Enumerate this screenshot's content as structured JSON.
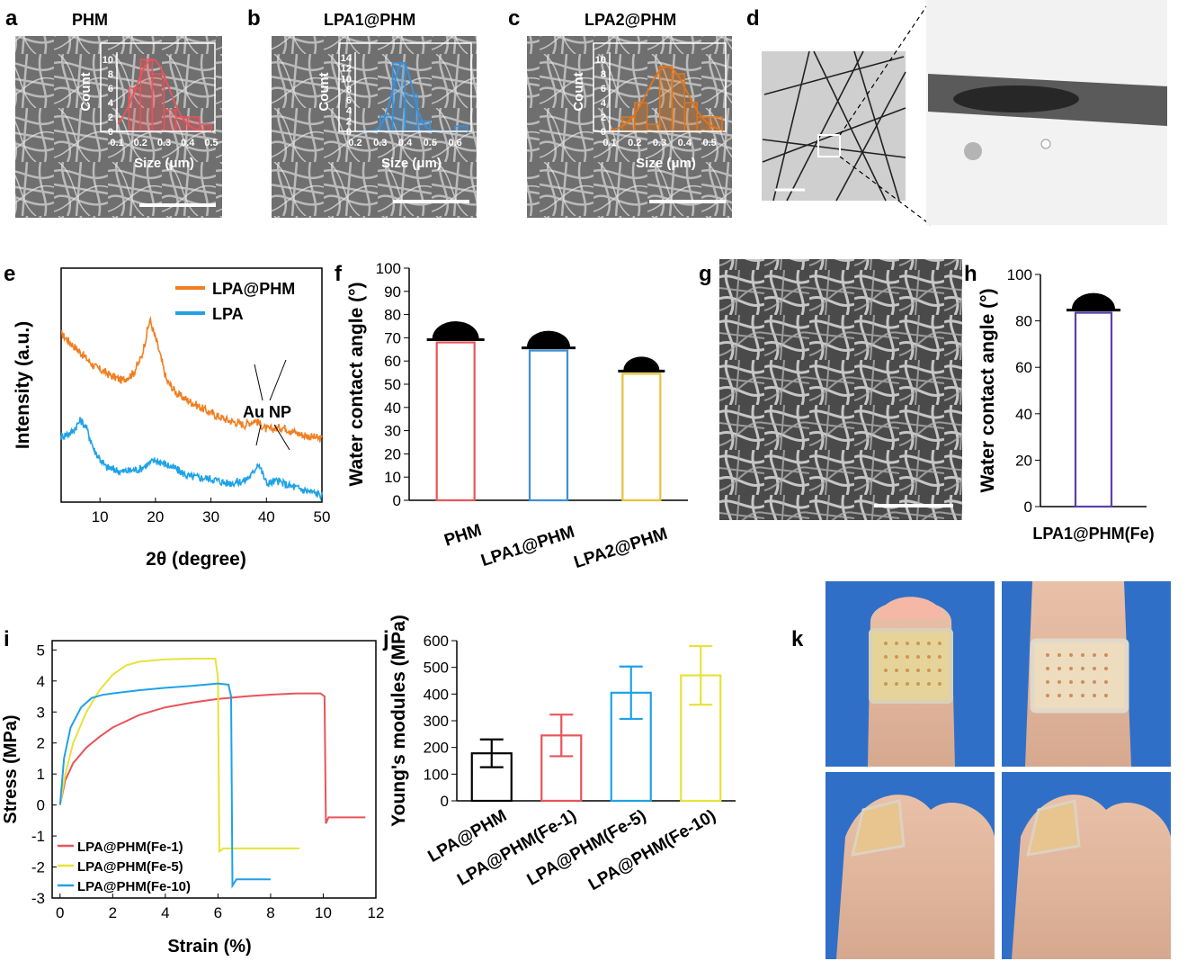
{
  "figure": {
    "colors": {
      "red": "#e8545a",
      "blue": "#3d8fd6",
      "orange": "#f07f22",
      "cyan": "#1fa2e6",
      "yellow": "#e8e23a",
      "purple": "#5b3fb0",
      "dark_orange": "#e0751a",
      "black": "#000000"
    },
    "panels": {
      "a": {
        "letter": "a",
        "title": "PHM"
      },
      "b": {
        "letter": "b",
        "title": "LPA1@PHM"
      },
      "c": {
        "letter": "c",
        "title": "LPA2@PHM"
      },
      "d": {
        "letter": "d"
      },
      "e": {
        "letter": "e"
      },
      "f": {
        "letter": "f"
      },
      "g": {
        "letter": "g"
      },
      "h": {
        "letter": "h"
      },
      "i": {
        "letter": "i"
      },
      "j": {
        "letter": "j"
      },
      "k": {
        "letter": "k"
      }
    }
  },
  "chart_data": [
    {
      "id": "a-inset",
      "type": "bar",
      "title": "PHM",
      "xlabel": "Size (μm)",
      "ylabel": "Count",
      "xlim": [
        0.1,
        0.5
      ],
      "ylim": [
        0,
        11
      ],
      "xticks": [
        "0.1",
        "0.2",
        "0.3",
        "0.4",
        "0.5"
      ],
      "yticks": [
        "0",
        "2",
        "4",
        "6",
        "8",
        "10"
      ],
      "bins": [
        {
          "x0": 0.15,
          "x1": 0.2,
          "count": 6
        },
        {
          "x0": 0.2,
          "x1": 0.25,
          "count": 10
        },
        {
          "x0": 0.25,
          "x1": 0.3,
          "count": 8
        },
        {
          "x0": 0.3,
          "x1": 0.35,
          "count": 3
        },
        {
          "x0": 0.35,
          "x1": 0.4,
          "count": 2
        },
        {
          "x0": 0.4,
          "x1": 0.45,
          "count": 2
        },
        {
          "x0": 0.45,
          "x1": 0.5,
          "count": 1
        }
      ],
      "fit": {
        "mu": 0.25,
        "sigma": 0.07,
        "peak": 10
      },
      "color": "#e8545a"
    },
    {
      "id": "b-inset",
      "type": "bar",
      "title": "LPA1@PHM",
      "xlabel": "Size (μm)",
      "ylabel": "Count",
      "xlim": [
        0.2,
        0.65
      ],
      "ylim": [
        0,
        15
      ],
      "xticks": [
        "0.2",
        "0.3",
        "0.4",
        "0.5",
        "0.6"
      ],
      "yticks": [
        "0",
        "2",
        "4",
        "6",
        "8",
        "10",
        "12",
        "14"
      ],
      "bins": [
        {
          "x0": 0.3,
          "x1": 0.35,
          "count": 3
        },
        {
          "x0": 0.35,
          "x1": 0.4,
          "count": 13
        },
        {
          "x0": 0.4,
          "x1": 0.45,
          "count": 7
        },
        {
          "x0": 0.45,
          "x1": 0.5,
          "count": 2
        },
        {
          "x0": 0.6,
          "x1": 0.65,
          "count": 1
        }
      ],
      "fit": {
        "mu": 0.39,
        "sigma": 0.04,
        "peak": 13
      },
      "color": "#3d8fd6"
    },
    {
      "id": "c-inset",
      "type": "bar",
      "title": "LPA2@PHM",
      "xlabel": "Size (μm)",
      "ylabel": "Count",
      "xlim": [
        0.1,
        0.55
      ],
      "ylim": [
        0,
        11
      ],
      "xticks": [
        "0.1",
        "0.2",
        "0.3",
        "0.4",
        "0.5"
      ],
      "yticks": [
        "0",
        "2",
        "4",
        "6",
        "8",
        "10"
      ],
      "bins": [
        {
          "x0": 0.15,
          "x1": 0.2,
          "count": 2
        },
        {
          "x0": 0.2,
          "x1": 0.25,
          "count": 4
        },
        {
          "x0": 0.25,
          "x1": 0.3,
          "count": 1
        },
        {
          "x0": 0.3,
          "x1": 0.35,
          "count": 9
        },
        {
          "x0": 0.35,
          "x1": 0.4,
          "count": 8
        },
        {
          "x0": 0.4,
          "x1": 0.45,
          "count": 4
        },
        {
          "x0": 0.45,
          "x1": 0.5,
          "count": 2
        },
        {
          "x0": 0.5,
          "x1": 0.55,
          "count": 2
        }
      ],
      "fit": {
        "mu": 0.33,
        "sigma": 0.08,
        "peak": 9
      },
      "color": "#e0751a"
    },
    {
      "id": "e",
      "type": "line",
      "xlabel": "2θ (degree)",
      "ylabel": "Intensity (a.u.)",
      "xlim": [
        3,
        50
      ],
      "xticks": [
        "10",
        "20",
        "30",
        "40",
        "50"
      ],
      "annotation": "Au NP",
      "series": [
        {
          "name": "LPA@PHM",
          "color": "#f07f22",
          "x": [
            3,
            6,
            9,
            12,
            14,
            16,
            17.5,
            19,
            20.5,
            22,
            24,
            27,
            30,
            33,
            36,
            38,
            40,
            43,
            46,
            50
          ],
          "y": [
            0.72,
            0.65,
            0.58,
            0.54,
            0.52,
            0.55,
            0.62,
            0.78,
            0.66,
            0.52,
            0.46,
            0.42,
            0.38,
            0.35,
            0.33,
            0.35,
            0.31,
            0.32,
            0.29,
            0.27
          ]
        },
        {
          "name": "LPA",
          "color": "#1fa2e6",
          "x": [
            3,
            5,
            6.5,
            7.5,
            9,
            11,
            14,
            17,
            20,
            23,
            26,
            30,
            33,
            36,
            37.5,
            38.5,
            40,
            42,
            44,
            47,
            50
          ],
          "y": [
            0.28,
            0.3,
            0.35,
            0.32,
            0.22,
            0.15,
            0.13,
            0.14,
            0.18,
            0.15,
            0.11,
            0.1,
            0.08,
            0.09,
            0.12,
            0.17,
            0.08,
            0.09,
            0.07,
            0.05,
            0.03
          ]
        }
      ]
    },
    {
      "id": "f",
      "type": "bar",
      "ylabel": "Water contact angle (°)",
      "ylim": [
        0,
        100
      ],
      "yticks": [
        "0",
        "10",
        "20",
        "30",
        "40",
        "50",
        "60",
        "70",
        "80",
        "90",
        "100"
      ],
      "categories": [
        "PHM",
        "LPA1@PHM",
        "LPA2@PHM"
      ],
      "values": [
        68,
        64.5,
        54.5
      ],
      "colors": [
        "#e8545a",
        "#3d8fd6",
        "#e8c23a"
      ]
    },
    {
      "id": "h",
      "type": "bar",
      "ylabel": "Water contact angle (°)",
      "ylim": [
        0,
        100
      ],
      "yticks": [
        "0",
        "20",
        "40",
        "60",
        "80",
        "100"
      ],
      "categories": [
        "LPA1@PHM(Fe)"
      ],
      "values": [
        83.5
      ],
      "colors": [
        "#5b3fb0"
      ]
    },
    {
      "id": "i",
      "type": "line",
      "xlabel": "Strain (%)",
      "ylabel": "Stress (MPa)",
      "xlim": [
        -0.3,
        12
      ],
      "ylim": [
        -3,
        5.3
      ],
      "xticks": [
        "0",
        "2",
        "4",
        "6",
        "8",
        "10",
        "12"
      ],
      "yticks": [
        "-3",
        "-2",
        "-1",
        "0",
        "1",
        "2",
        "3",
        "4",
        "5"
      ],
      "series": [
        {
          "name": "LPA@PHM(Fe-1)",
          "color": "#e8545a",
          "x": [
            0,
            0.2,
            0.5,
            1,
            1.5,
            2,
            3,
            4,
            5,
            6,
            7,
            8,
            9,
            9.9,
            10.05,
            10.1,
            10.2,
            11,
            11.6
          ],
          "y": [
            0,
            0.8,
            1.35,
            1.85,
            2.2,
            2.5,
            2.9,
            3.15,
            3.3,
            3.42,
            3.5,
            3.56,
            3.6,
            3.6,
            3.5,
            -0.6,
            -0.4,
            -0.4,
            -0.4
          ]
        },
        {
          "name": "LPA@PHM(Fe-5)",
          "color": "#e8e23a",
          "x": [
            0,
            0.2,
            0.5,
            1,
            1.5,
            2,
            2.5,
            3,
            4,
            5,
            5.9,
            6.0,
            6.05,
            6.2,
            7,
            8,
            9.1
          ],
          "y": [
            0,
            1.0,
            2.0,
            3.0,
            3.7,
            4.2,
            4.5,
            4.62,
            4.7,
            4.72,
            4.72,
            4.1,
            -1.5,
            -1.4,
            -1.4,
            -1.4,
            -1.4
          ]
        },
        {
          "name": "LPA@PHM(Fe-10)",
          "color": "#1fa2e6",
          "x": [
            0,
            0.15,
            0.4,
            0.8,
            1.2,
            1.6,
            2,
            3,
            4,
            5,
            6,
            6.4,
            6.5,
            6.55,
            6.7,
            7.2,
            8
          ],
          "y": [
            0,
            1.5,
            2.5,
            3.15,
            3.45,
            3.55,
            3.6,
            3.7,
            3.78,
            3.84,
            3.92,
            3.88,
            3.5,
            -2.6,
            -2.4,
            -2.4,
            -2.4
          ]
        }
      ]
    },
    {
      "id": "j",
      "type": "bar",
      "ylabel": "Young's modules (MPa)",
      "ylim": [
        0,
        600
      ],
      "yticks": [
        "0",
        "100",
        "200",
        "300",
        "400",
        "500",
        "600"
      ],
      "categories": [
        "LPA@PHM",
        "LPA@PHM(Fe-1)",
        "LPA@PHM(Fe-5)",
        "LPA@PHM(Fe-10)"
      ],
      "values": [
        178,
        245,
        405,
        470
      ],
      "errors": [
        52,
        78,
        98,
        110
      ],
      "colors": [
        "#000000",
        "#e8545a",
        "#1fa2e6",
        "#e8e23a"
      ]
    }
  ]
}
